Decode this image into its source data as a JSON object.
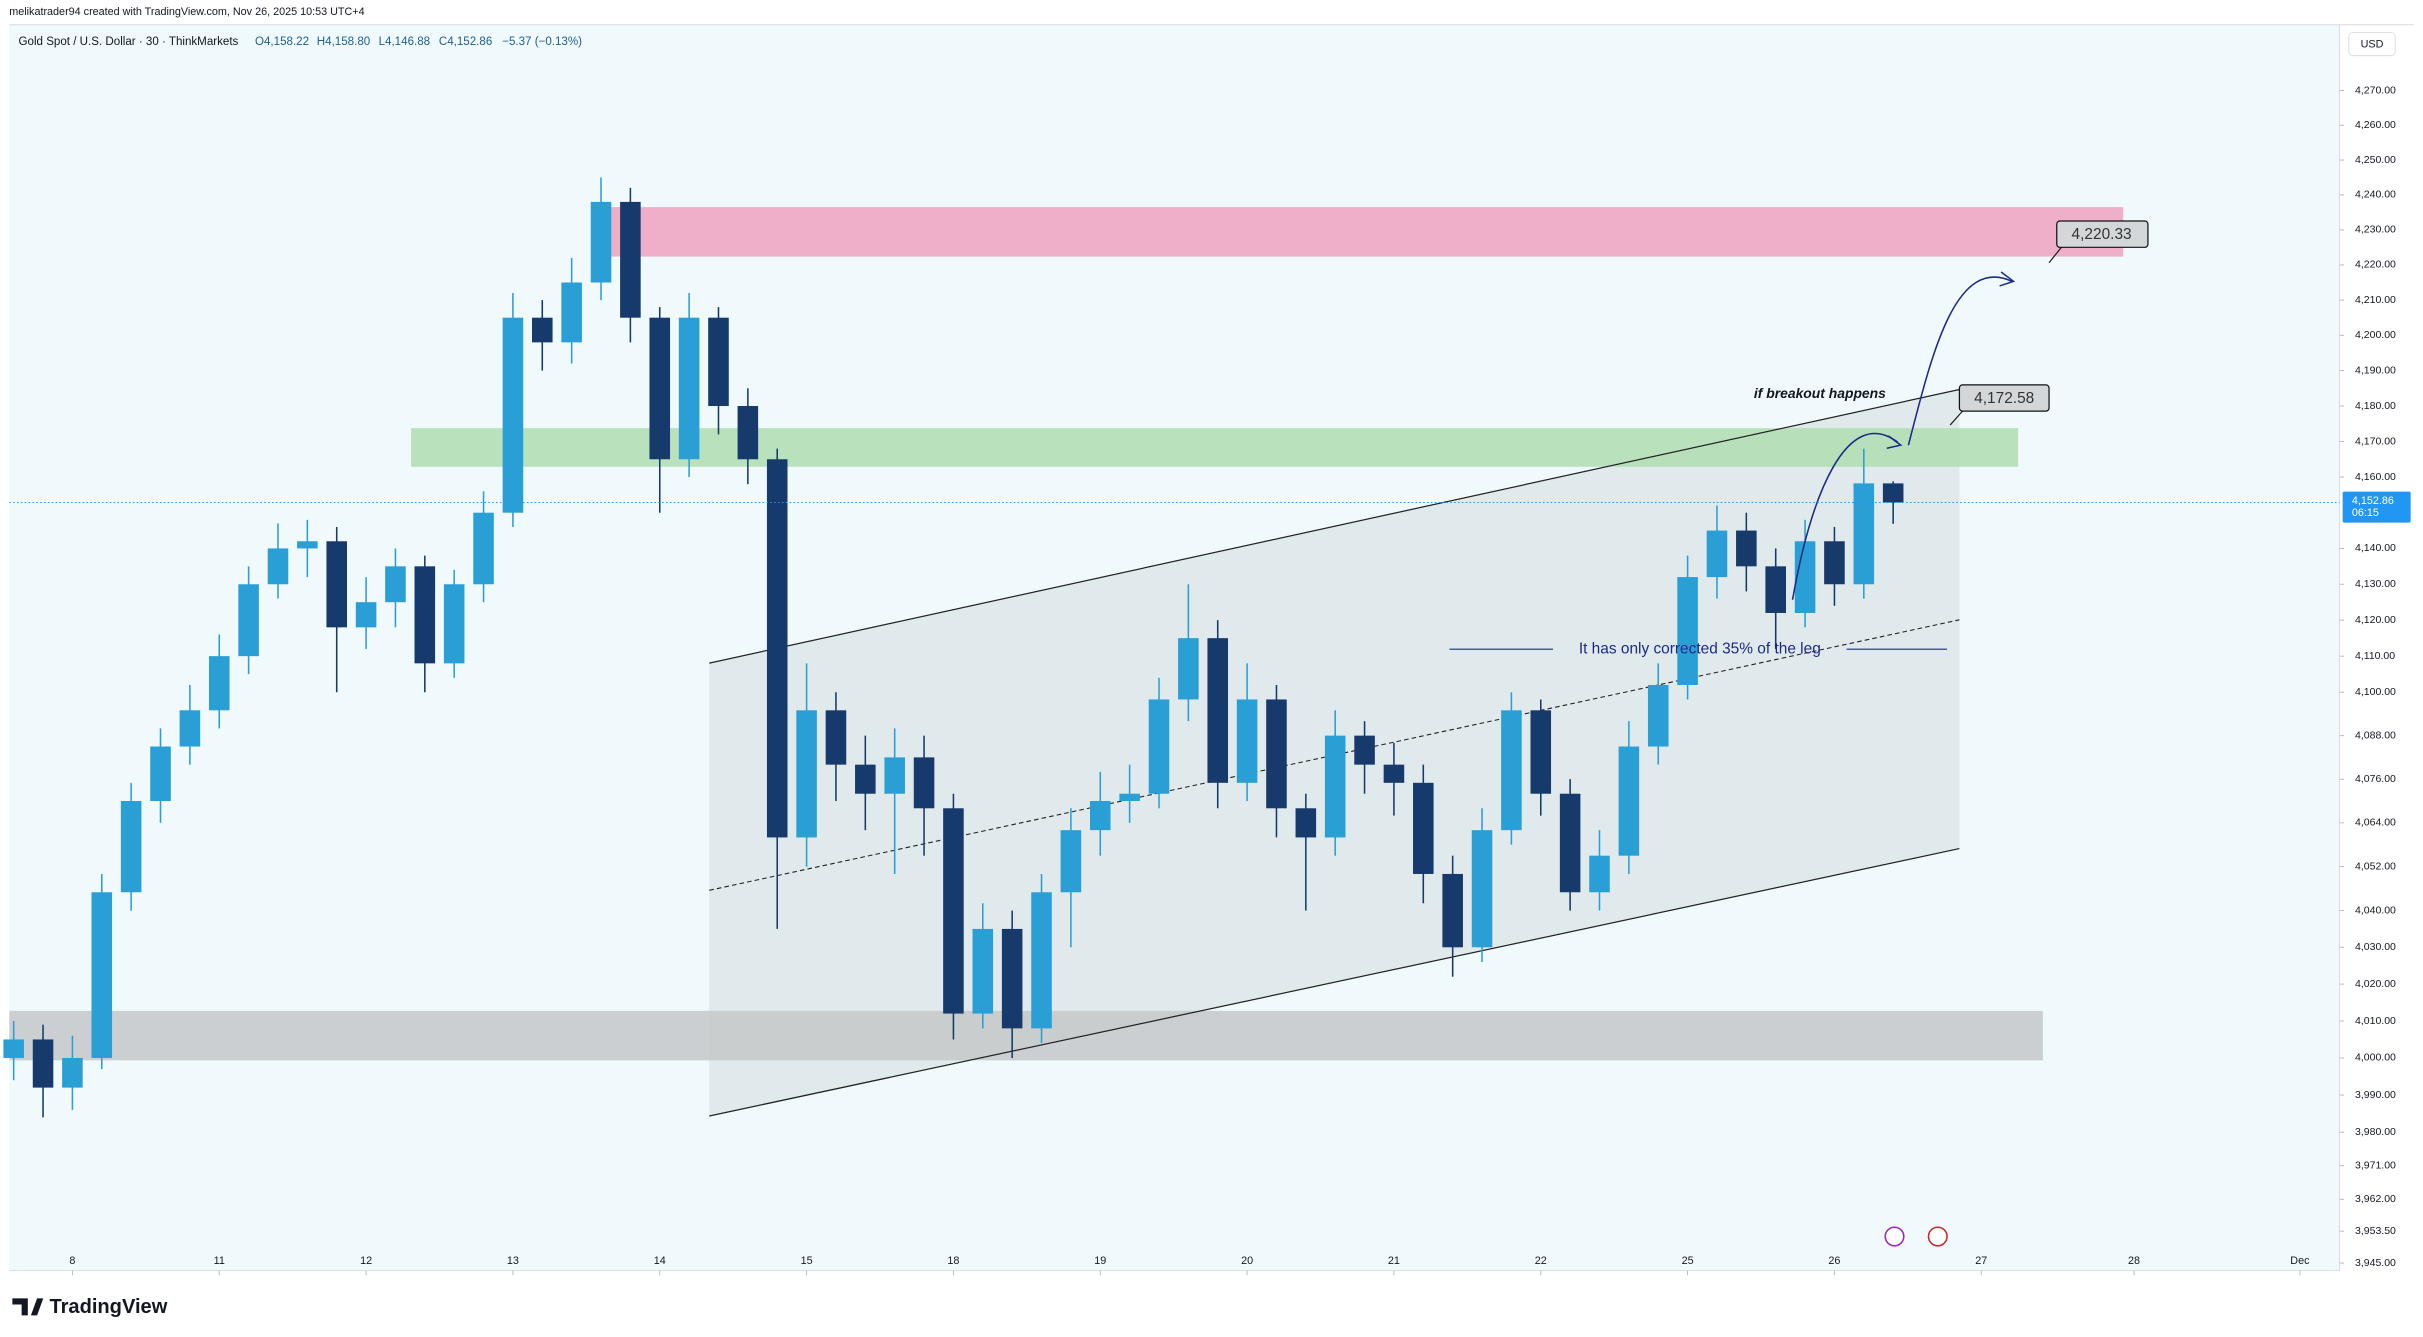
{
  "header": {
    "author": "melikatrader94 created with TradingView.com, Nov 26, 2025 10:53 UTC+4",
    "symbol": "Gold Spot / U.S. Dollar · 30 · ThinkMarkets",
    "open": "O4,158.22",
    "high": "H4,158.80",
    "low": "L4,146.88",
    "close": "C4,152.86",
    "change": "−5.37 (−0.13%)"
  },
  "price_axis": {
    "currency": "USD",
    "last_price": "4,152.86",
    "countdown": "06:15"
  },
  "annotations": {
    "target_high": "4,220.33",
    "target_low": "4,172.58",
    "breakout": "if breakout happens",
    "correction": "It has only corrected 35% of the leg"
  },
  "footer": {
    "brand": "TradingView"
  },
  "chart_data": {
    "type": "candlestick",
    "log_scale": true,
    "grid": false,
    "up_color": "#2a9fd6",
    "down_color": "#163a6b",
    "x": [
      -0.4,
      -0.2,
      0,
      0.2,
      0.4,
      0.6,
      0.8,
      1,
      1.2,
      1.4,
      1.6,
      1.8,
      2,
      2.2,
      2.4,
      2.6,
      2.8,
      3,
      3.2,
      3.4,
      3.6,
      3.8,
      4,
      4.2,
      4.4,
      4.6,
      4.8,
      5,
      5.2,
      5.4,
      5.6,
      5.8,
      6,
      6.2,
      6.4,
      6.6,
      6.8,
      7,
      7.2,
      7.4,
      7.6,
      7.8,
      8,
      8.2,
      8.4,
      8.6,
      8.8,
      9,
      9.2,
      9.4,
      9.6,
      9.8,
      10,
      10.2,
      10.4,
      10.6,
      10.8,
      11,
      11.2,
      11.4,
      11.6,
      11.8,
      12,
      12.2,
      12.4
    ],
    "open": [
      4000,
      4005,
      3992,
      4000,
      4045,
      4070,
      4085,
      4095,
      4110,
      4130,
      4140,
      4142,
      4118,
      4125,
      4135,
      4108,
      4130,
      4150,
      4205,
      4198,
      4215,
      4238,
      4205,
      4165,
      4205,
      4180,
      4165,
      4060,
      4095,
      4080,
      4072,
      4082,
      4068,
      4012,
      4035,
      4008,
      4045,
      4062,
      4070,
      4072,
      4098,
      4115,
      4075,
      4098,
      4068,
      4060,
      4088,
      4080,
      4075,
      4050,
      4030,
      4062,
      4095,
      4072,
      4045,
      4055,
      4085,
      4102,
      4132,
      4145,
      4135,
      4122,
      4142,
      4130,
      4158.22
    ],
    "high": [
      4010,
      4009,
      4006,
      4050,
      4075,
      4090,
      4102,
      4116,
      4135,
      4147,
      4148,
      4146,
      4132,
      4140,
      4138,
      4134,
      4156,
      4212,
      4210,
      4222,
      4245,
      4242,
      4208,
      4212,
      4208,
      4185,
      4168,
      4108,
      4100,
      4088,
      4090,
      4088,
      4072,
      4042,
      4040,
      4050,
      4068,
      4078,
      4080,
      4104,
      4130,
      4120,
      4108,
      4102,
      4072,
      4095,
      4092,
      4086,
      4080,
      4055,
      4068,
      4100,
      4098,
      4076,
      4062,
      4092,
      4108,
      4138,
      4152,
      4150,
      4140,
      4148,
      4146,
      4168,
      4158.8
    ],
    "low": [
      3994,
      3984,
      3986,
      3997,
      4040,
      4064,
      4080,
      4090,
      4105,
      4126,
      4132,
      4100,
      4112,
      4118,
      4100,
      4104,
      4125,
      4146,
      4190,
      4192,
      4210,
      4198,
      4150,
      4160,
      4172,
      4158,
      4035,
      4052,
      4070,
      4062,
      4050,
      4055,
      4005,
      4008,
      4000,
      4004,
      4030,
      4055,
      4064,
      4068,
      4092,
      4068,
      4070,
      4060,
      4040,
      4055,
      4072,
      4066,
      4042,
      4022,
      4026,
      4058,
      4066,
      4040,
      4040,
      4050,
      4080,
      4098,
      4126,
      4128,
      4112,
      4118,
      4124,
      4126,
      4146.88
    ],
    "close": [
      4005,
      3992,
      4000,
      4045,
      4070,
      4085,
      4095,
      4110,
      4130,
      4140,
      4142,
      4118,
      4125,
      4135,
      4108,
      4130,
      4150,
      4205,
      4198,
      4215,
      4238,
      4205,
      4165,
      4205,
      4180,
      4165,
      4060,
      4095,
      4080,
      4072,
      4082,
      4068,
      4012,
      4035,
      4008,
      4045,
      4062,
      4070,
      4072,
      4098,
      4115,
      4075,
      4098,
      4068,
      4060,
      4088,
      4080,
      4075,
      4050,
      4030,
      4062,
      4095,
      4072,
      4045,
      4055,
      4085,
      4102,
      4132,
      4145,
      4135,
      4122,
      4142,
      4130,
      4158.22,
      4152.86
    ],
    "xlim": [
      -0.43,
      15.44
    ],
    "xticks": [
      {
        "value": 0,
        "label": "8"
      },
      {
        "value": 1,
        "label": "11"
      },
      {
        "value": 2,
        "label": "12"
      },
      {
        "value": 3,
        "label": "13"
      },
      {
        "value": 4,
        "label": "14"
      },
      {
        "value": 5,
        "label": "15"
      },
      {
        "value": 6,
        "label": "18"
      },
      {
        "value": 7,
        "label": "19"
      },
      {
        "value": 8,
        "label": "20"
      },
      {
        "value": 9,
        "label": "21"
      },
      {
        "value": 10,
        "label": "22"
      },
      {
        "value": 11,
        "label": "25"
      },
      {
        "value": 12,
        "label": "26"
      },
      {
        "value": 13,
        "label": "27"
      },
      {
        "value": 14.04,
        "label": "28"
      },
      {
        "value": 15.17,
        "label": "Dec"
      }
    ],
    "ylim": [
      3943,
      4289
    ],
    "yticks": [
      {
        "value": 4270,
        "label": "4,270.00"
      },
      {
        "value": 4260,
        "label": "4,260.00"
      },
      {
        "value": 4250,
        "label": "4,250.00"
      },
      {
        "value": 4240,
        "label": "4,240.00"
      },
      {
        "value": 4230,
        "label": "4,230.00"
      },
      {
        "value": 4220,
        "label": "4,220.00"
      },
      {
        "value": 4210,
        "label": "4,210.00"
      },
      {
        "value": 4200,
        "label": "4,200.00"
      },
      {
        "value": 4190,
        "label": "4,190.00"
      },
      {
        "value": 4180,
        "label": "4,180.00"
      },
      {
        "value": 4170,
        "label": "4,170.00"
      },
      {
        "value": 4160,
        "label": "4,160.00"
      },
      {
        "value": 4140,
        "label": "4,140.00"
      },
      {
        "value": 4130,
        "label": "4,130.00"
      },
      {
        "value": 4120,
        "label": "4,120.00"
      },
      {
        "value": 4110,
        "label": "4,110.00"
      },
      {
        "value": 4100,
        "label": "4,100.00"
      },
      {
        "value": 4088,
        "label": "4,088.00"
      },
      {
        "value": 4076,
        "label": "4,076.00"
      },
      {
        "value": 4064,
        "label": "4,064.00"
      },
      {
        "value": 4052,
        "label": "4,052.00"
      },
      {
        "value": 4040,
        "label": "4,040.00"
      },
      {
        "value": 4030,
        "label": "4,030.00"
      },
      {
        "value": 4020,
        "label": "4,020.00"
      },
      {
        "value": 4010,
        "label": "4,010.00"
      },
      {
        "value": 4000,
        "label": "4,000.00"
      },
      {
        "value": 3990,
        "label": "3,990.00"
      },
      {
        "value": 3980,
        "label": "3,980.00"
      },
      {
        "value": 3971,
        "label": "3,971.00"
      },
      {
        "value": 3962,
        "label": "3,962.00"
      },
      {
        "value": 3953.5,
        "label": "3,953.50"
      },
      {
        "value": 3945,
        "label": "3,945.00"
      }
    ]
  }
}
